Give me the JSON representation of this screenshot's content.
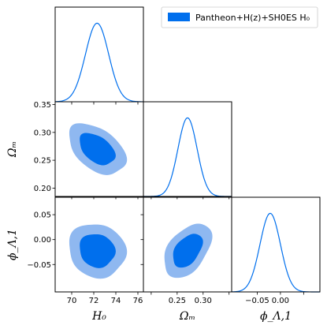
{
  "chart_data": {
    "type": "corner",
    "colors": {
      "line": "#006FED",
      "outer": "#8FB8F0",
      "inner": "#006FED"
    },
    "legend": {
      "label": "Pantheon+H(z)+SH0ES H₀",
      "placement": "top-right"
    },
    "parameters": [
      {
        "name": "H0",
        "label": "H₀",
        "range": [
          68.5,
          76.5
        ],
        "ticks": [
          "70",
          "72",
          "74",
          "76"
        ],
        "mean": 72.3,
        "sigma": 1.05
      },
      {
        "name": "Omega_m",
        "label": "Ωₘ",
        "range": [
          0.185,
          0.355
        ],
        "ticks": [
          "0.20",
          "0.25",
          "0.30",
          "0.35"
        ],
        "mean": 0.27,
        "sigma": 0.0185
      },
      {
        "name": "phi_Lambda_1",
        "label": "ϕ_Λ,1",
        "range": [
          -0.105,
          0.085
        ],
        "ticks": [
          "−0.05",
          "0.00",
          "0.05"
        ],
        "mean": -0.022,
        "sigma": 0.022
      }
    ],
    "x_tick_labels": {
      "H0": [
        "70",
        "72",
        "74",
        "76"
      ],
      "Omega_m": [
        "0.25",
        "0.30"
      ],
      "phi_Lambda_1": [
        "−0.05",
        "0.00"
      ]
    },
    "y_tick_labels": {
      "Omega_m": [
        "0.20",
        "0.25",
        "0.30",
        "0.35"
      ],
      "phi_Lambda_1": [
        "−0.05",
        "0.00",
        "0.05"
      ]
    },
    "correlations": {
      "H0_Omega_m": -0.45,
      "H0_phi": -0.1,
      "Omega_m_phi": 0.45
    },
    "contour_levels": [
      "68%",
      "95%"
    ]
  }
}
